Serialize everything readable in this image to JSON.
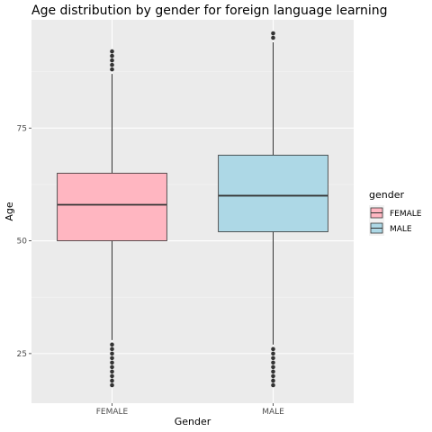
{
  "chart_data": {
    "type": "boxplot",
    "title": "Age distribution by gender for foreign language learning",
    "xlabel": "Gender",
    "ylabel": "Age",
    "ylim": [
      14,
      99
    ],
    "y_ticks": [
      25,
      50,
      75
    ],
    "grid": true,
    "legend": {
      "title": "gender",
      "placement": "right",
      "entries": [
        "FEMALE",
        "MALE"
      ]
    },
    "categories": [
      "FEMALE",
      "MALE"
    ],
    "series": [
      {
        "name": "FEMALE",
        "color": "#ffb6c1",
        "whisker_low": 28,
        "q1": 50,
        "median": 58,
        "q3": 65,
        "whisker_high": 87,
        "outliers": [
          88,
          89,
          90,
          91,
          92,
          18,
          19,
          20,
          21,
          22,
          23,
          24,
          25,
          26,
          27
        ]
      },
      {
        "name": "MALE",
        "color": "#add8e6",
        "whisker_low": 27,
        "q1": 52,
        "median": 60,
        "q3": 69,
        "whisker_high": 94,
        "outliers": [
          95,
          96,
          18,
          19,
          20,
          21,
          22,
          23,
          24,
          25,
          26
        ]
      }
    ]
  }
}
